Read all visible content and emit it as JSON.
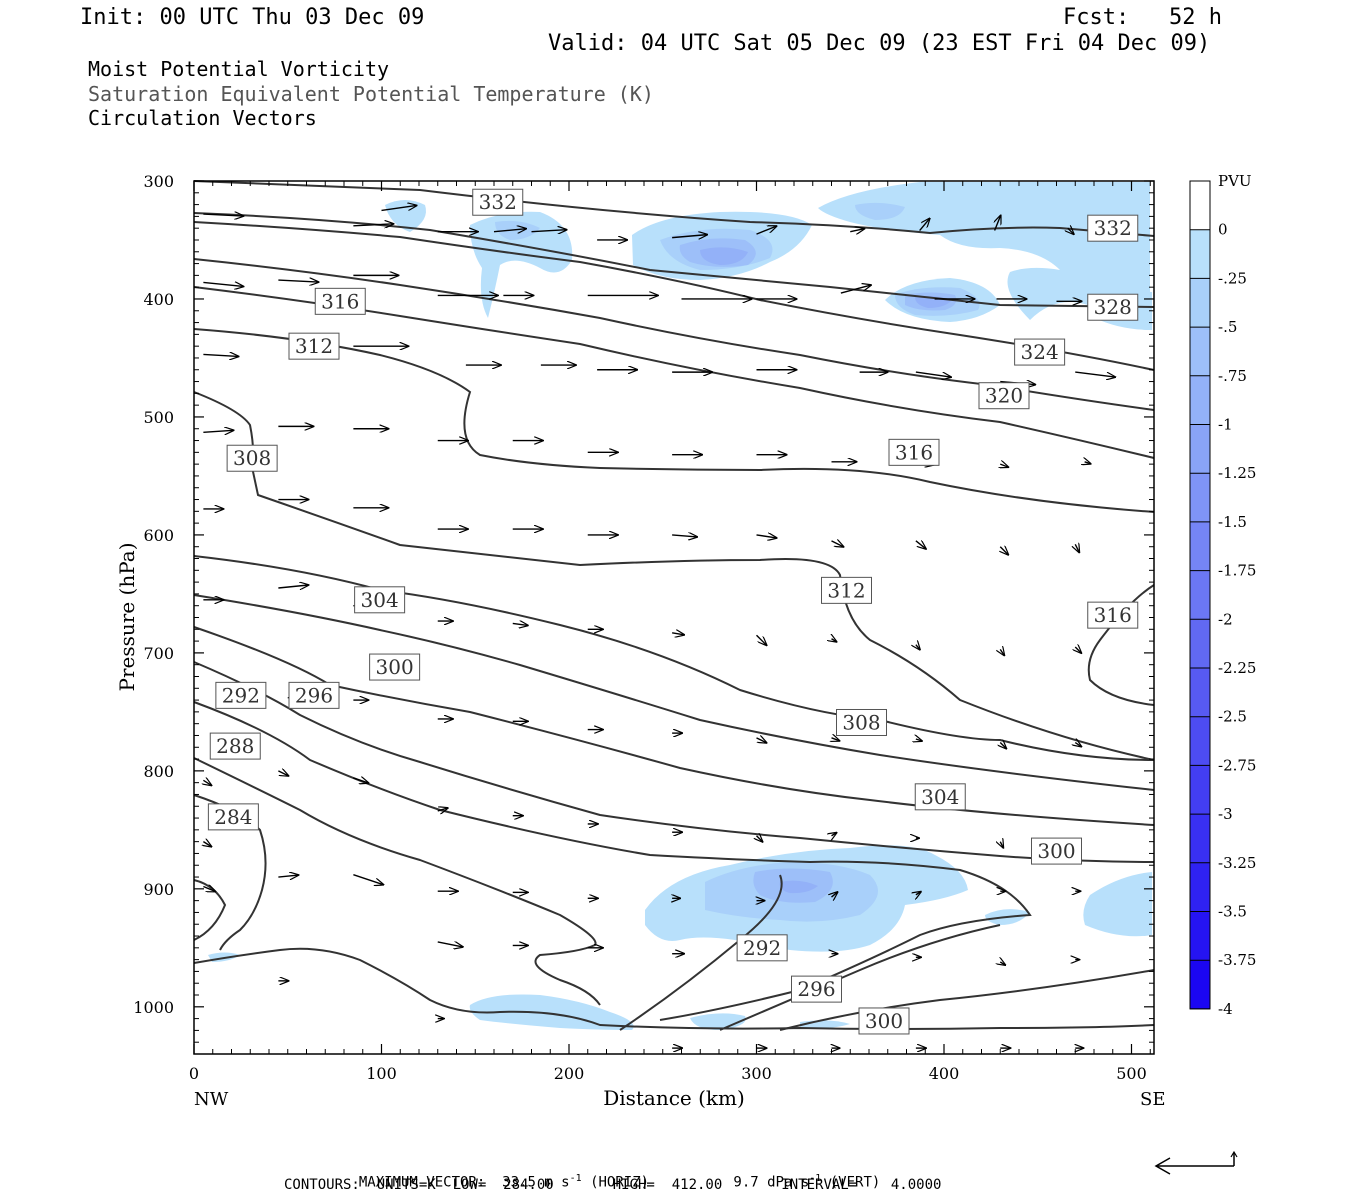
{
  "header": {
    "init": "Init: 00 UTC Thu 03 Dec 09",
    "fcst": "Fcst:   52 h",
    "valid": "Valid: 04 UTC Sat 05 Dec 09 (23 EST Fri 04 Dec 09)",
    "field1": "Moist Potential Vorticity",
    "field2": "Saturation Equivalent Potential Temperature (K)",
    "field3": "Circulation Vectors"
  },
  "footer": {
    "max_vector_label": "MAXIMUM VECTOR:",
    "max_horiz": "33.5 m s",
    "max_horiz_unit": "(HORIZ)",
    "max_vert": "9.7 dPa s",
    "max_vert_unit": "(VERT)",
    "exp": "-1",
    "contours": "CONTOURS:  UNITS=K  LOW=  284.00       HIGH=  412.00       INTERVAL=    4.0000"
  },
  "chart_data": {
    "type": "cross-section",
    "xlabel": "Distance (km)",
    "ylabel": "Pressure (hPa)",
    "xlim": [
      0,
      512
    ],
    "ylim": [
      1040,
      300
    ],
    "x_ticks": [
      0,
      100,
      200,
      300,
      400,
      500
    ],
    "y_ticks": [
      300,
      400,
      500,
      600,
      700,
      800,
      900,
      1000
    ],
    "x_end_labels": {
      "left": "NW",
      "right": "SE"
    },
    "colorbar": {
      "unit": "PVU",
      "levels": [
        "0",
        "-.25",
        "-.5",
        "-.75",
        "-1",
        "-1.25",
        "-1.5",
        "-1.75",
        "-2",
        "-2.25",
        "-2.5",
        "-2.75",
        "-3",
        "-3.25",
        "-3.5",
        "-3.75",
        "-4"
      ],
      "colors": [
        "#ffffff",
        "#b8e0fb",
        "#a9d0fa",
        "#9dbff9",
        "#93b1f8",
        "#89a3f7",
        "#7f94f6",
        "#7585f5",
        "#6b77f4",
        "#6169f3",
        "#575af3",
        "#4d4cf2",
        "#433ef2",
        "#3930f2",
        "#2f22f2",
        "#2514f2",
        "#1b06f2"
      ]
    },
    "contour_labels": [
      {
        "text": "332",
        "x": 162,
        "p": 318
      },
      {
        "text": "332",
        "x": 490,
        "p": 340
      },
      {
        "text": "328",
        "x": 490,
        "p": 407
      },
      {
        "text": "324",
        "x": 451,
        "p": 445
      },
      {
        "text": "320",
        "x": 432,
        "p": 482
      },
      {
        "text": "316",
        "x": 78,
        "p": 402
      },
      {
        "text": "312",
        "x": 64,
        "p": 440
      },
      {
        "text": "316",
        "x": 384,
        "p": 530
      },
      {
        "text": "308",
        "x": 31,
        "p": 535
      },
      {
        "text": "312",
        "x": 348,
        "p": 647
      },
      {
        "text": "316",
        "x": 490,
        "p": 668
      },
      {
        "text": "304",
        "x": 99,
        "p": 655
      },
      {
        "text": "300",
        "x": 107,
        "p": 712
      },
      {
        "text": "292",
        "x": 25,
        "p": 736
      },
      {
        "text": "296",
        "x": 64,
        "p": 736
      },
      {
        "text": "288",
        "x": 22,
        "p": 779
      },
      {
        "text": "308",
        "x": 356,
        "p": 759
      },
      {
        "text": "304",
        "x": 398,
        "p": 822
      },
      {
        "text": "284",
        "x": 21,
        "p": 839
      },
      {
        "text": "300",
        "x": 460,
        "p": 868
      },
      {
        "text": "292",
        "x": 303,
        "p": 950
      },
      {
        "text": "296",
        "x": 332,
        "p": 985
      },
      {
        "text": "300",
        "x": 368,
        "p": 1012
      }
    ],
    "max_vector": {
      "horiz_m_s": 33.5,
      "vert_dPa_s": 9.7
    },
    "contour_interval": 4.0,
    "contour_low": 284.0,
    "contour_high": 412.0
  }
}
